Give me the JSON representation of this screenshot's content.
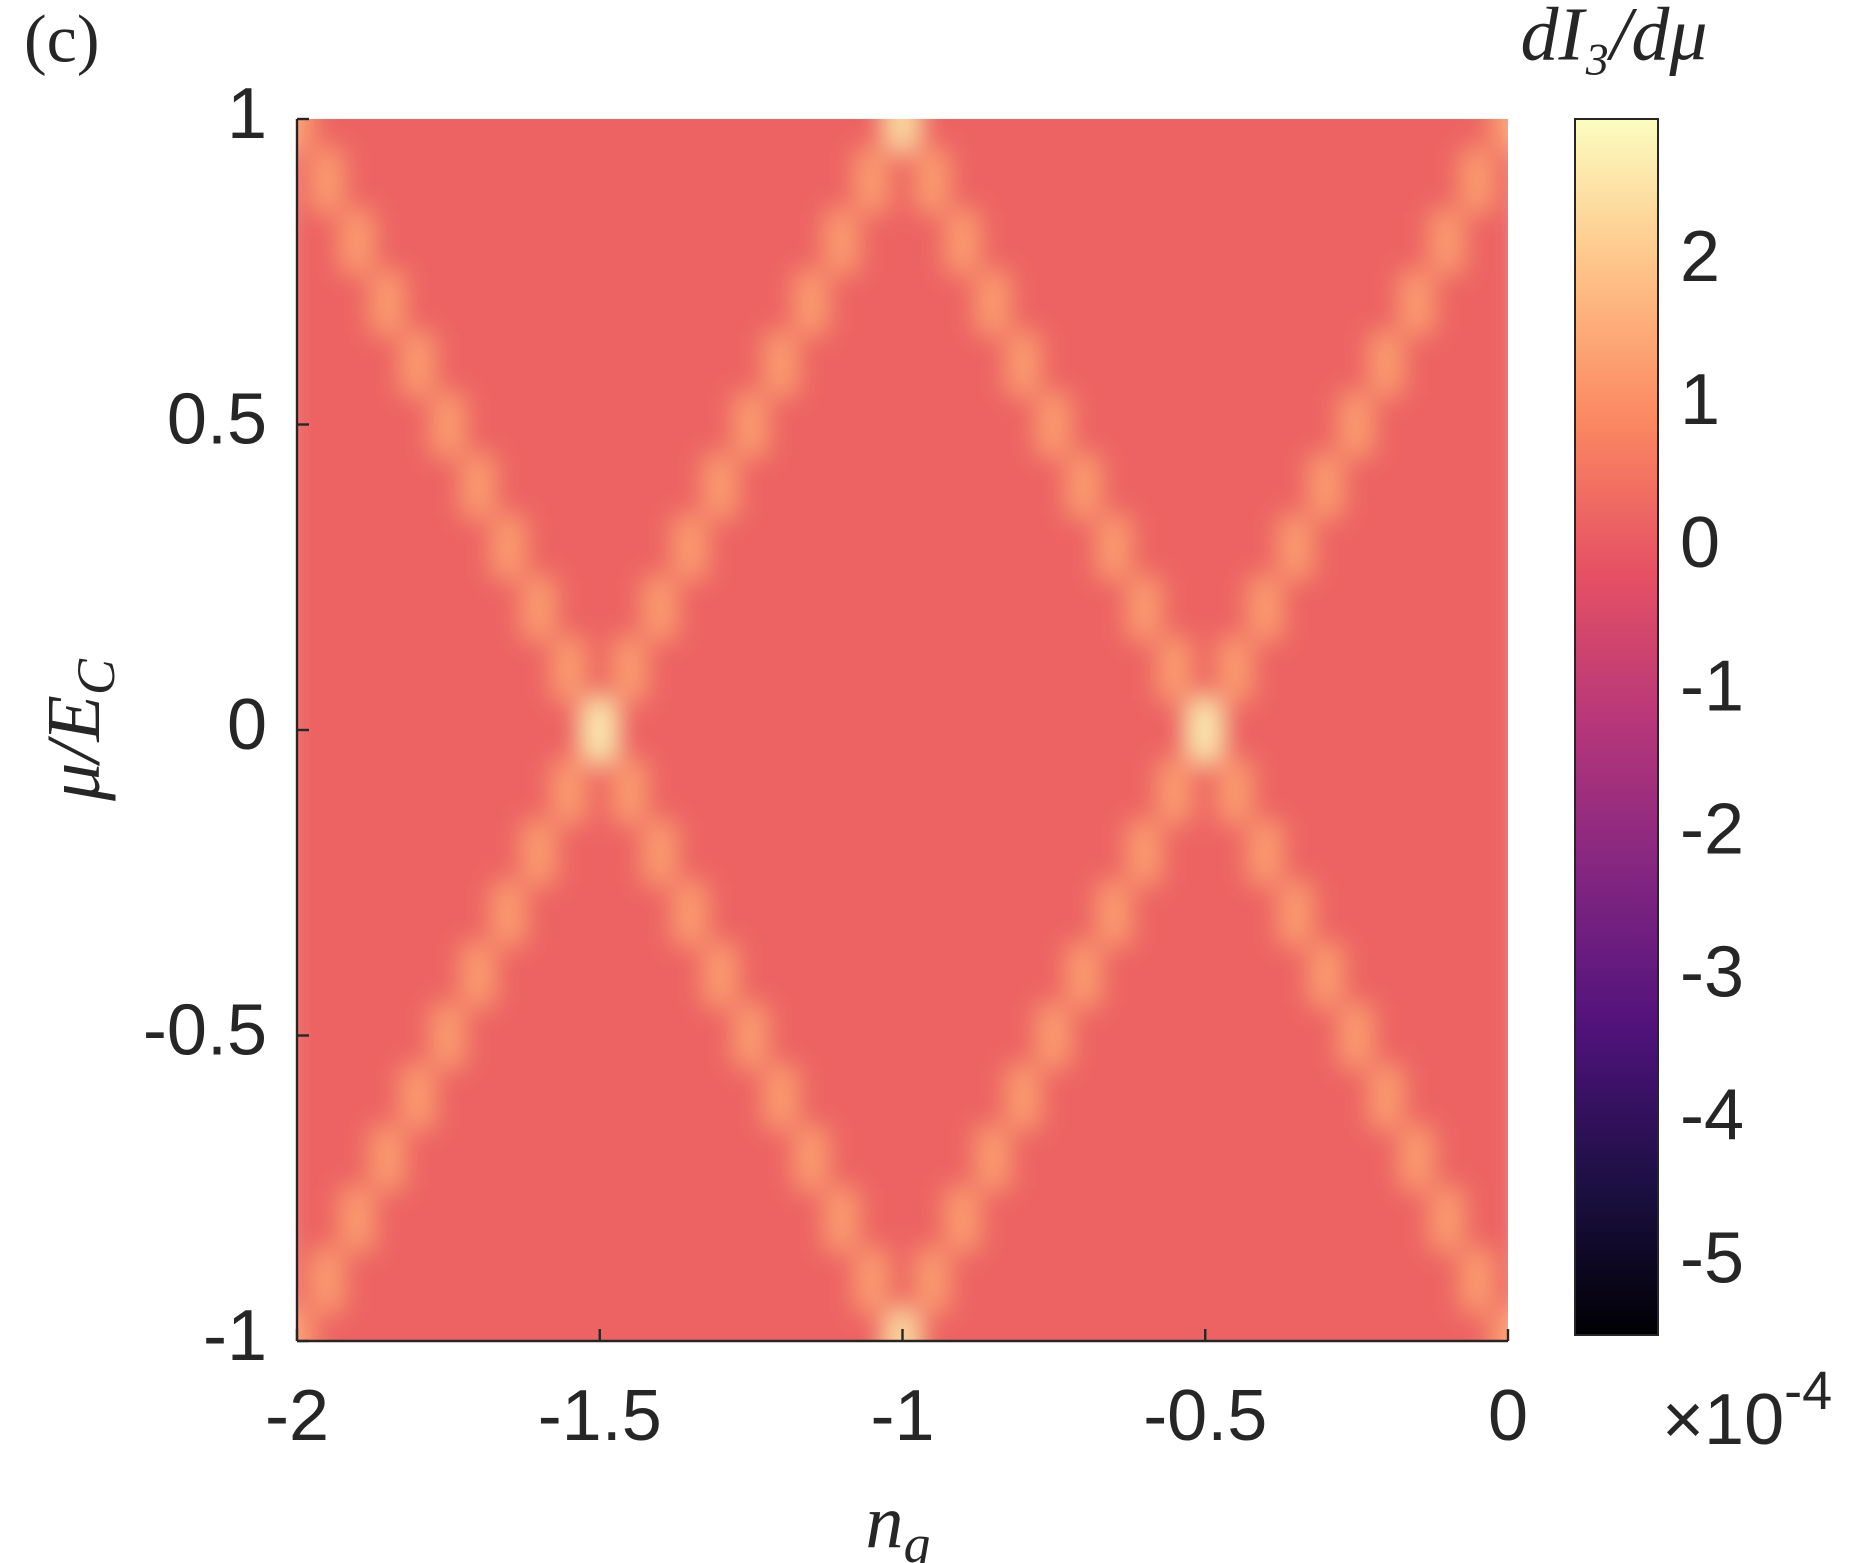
{
  "chart_data": {
    "type": "heatmap",
    "panel_label": "(c)",
    "xlabel": {
      "text": "n",
      "subscript": "g"
    },
    "ylabel": {
      "text": "μ/E",
      "subscript": "C"
    },
    "colorbar_label": "dI₃/dμ",
    "colorbar_scale": {
      "base": "×10",
      "exponent": "-4"
    },
    "x": [
      -2,
      -1.95,
      -1.9,
      -1.85,
      -1.8,
      -1.75,
      -1.7,
      -1.65,
      -1.6,
      -1.55,
      -1.5,
      -1.45,
      -1.4,
      -1.35,
      -1.3,
      -1.25,
      -1.2,
      -1.15,
      -1.1,
      -1.05,
      -1,
      -0.95,
      -0.9,
      -0.85,
      -0.8,
      -0.75,
      -0.7,
      -0.65,
      -0.6,
      -0.55,
      -0.5,
      -0.45,
      -0.4,
      -0.35,
      -0.3,
      -0.25,
      -0.2,
      -0.15,
      -0.1,
      -0.05,
      0
    ],
    "y": [
      -1,
      -0.9,
      -0.8,
      -0.7,
      -0.6,
      -0.5,
      -0.4,
      -0.3,
      -0.2,
      -0.1,
      0,
      0.1,
      0.2,
      0.3,
      0.4,
      0.5,
      0.6,
      0.7,
      0.8,
      0.9,
      1
    ],
    "z": [
      [
        1.3,
        0.2,
        0.2,
        0.2,
        0.2,
        0.2,
        0.2,
        0.2,
        0.2,
        0.2,
        0.2,
        0.2,
        0.2,
        0.2,
        0.2,
        0.2,
        0.2,
        0.2,
        0.2,
        0.2,
        2.5,
        0.2,
        0.2,
        0.2,
        0.2,
        0.2,
        0.2,
        0.2,
        0.2,
        0.2,
        0.2,
        0.2,
        0.2,
        0.2,
        0.2,
        0.2,
        0.2,
        0.2,
        0.2,
        0.2,
        1.3
      ],
      [
        0.2,
        1.3,
        0.2,
        0.2,
        0.2,
        0.2,
        0.2,
        0.2,
        0.2,
        0.2,
        0.2,
        0.2,
        0.2,
        0.2,
        0.2,
        0.2,
        0.2,
        0.2,
        0.2,
        1.3,
        0.2,
        1.3,
        0.2,
        0.2,
        0.2,
        0.2,
        0.2,
        0.2,
        0.2,
        0.2,
        0.2,
        0.2,
        0.2,
        0.2,
        0.2,
        0.2,
        0.2,
        0.2,
        0.2,
        1.3,
        0.2
      ],
      [
        0.2,
        0.2,
        1.3,
        0.2,
        0.2,
        0.2,
        0.2,
        0.2,
        0.2,
        0.2,
        0.2,
        0.2,
        0.2,
        0.2,
        0.2,
        0.2,
        0.2,
        0.2,
        1.3,
        0.2,
        0.2,
        0.2,
        1.3,
        0.2,
        0.2,
        0.2,
        0.2,
        0.2,
        0.2,
        0.2,
        0.2,
        0.2,
        0.2,
        0.2,
        0.2,
        0.2,
        0.2,
        0.2,
        1.3,
        0.2,
        0.2
      ],
      [
        0.2,
        0.2,
        0.2,
        1.3,
        0.2,
        0.2,
        0.2,
        0.2,
        0.2,
        0.2,
        0.2,
        0.2,
        0.2,
        0.2,
        0.2,
        0.2,
        0.2,
        1.3,
        0.2,
        0.2,
        0.2,
        0.2,
        0.2,
        1.3,
        0.2,
        0.2,
        0.2,
        0.2,
        0.2,
        0.2,
        0.2,
        0.2,
        0.2,
        0.2,
        0.2,
        0.2,
        0.2,
        1.3,
        0.2,
        0.2,
        0.2
      ],
      [
        0.2,
        0.2,
        0.2,
        0.2,
        1.3,
        0.2,
        0.2,
        0.2,
        0.2,
        0.2,
        0.2,
        0.2,
        0.2,
        0.2,
        0.2,
        0.2,
        1.3,
        0.2,
        0.2,
        0.2,
        0.2,
        0.2,
        0.2,
        0.2,
        1.3,
        0.2,
        0.2,
        0.2,
        0.2,
        0.2,
        0.2,
        0.2,
        0.2,
        0.2,
        0.2,
        0.2,
        1.3,
        0.2,
        0.2,
        0.2,
        0.2
      ],
      [
        0.2,
        0.2,
        0.2,
        0.2,
        0.2,
        1.3,
        0.2,
        0.2,
        0.2,
        0.2,
        0.2,
        0.2,
        0.2,
        0.2,
        0.2,
        1.3,
        0.2,
        0.2,
        0.2,
        0.2,
        0.2,
        0.2,
        0.2,
        0.2,
        0.2,
        1.3,
        0.2,
        0.2,
        0.2,
        0.2,
        0.2,
        0.2,
        0.2,
        0.2,
        0.2,
        1.3,
        0.2,
        0.2,
        0.2,
        0.2,
        0.2
      ],
      [
        0.2,
        0.2,
        0.2,
        0.2,
        0.2,
        0.2,
        1.3,
        0.2,
        0.2,
        0.2,
        0.2,
        0.2,
        0.2,
        0.2,
        1.3,
        0.2,
        0.2,
        0.2,
        0.2,
        0.2,
        0.2,
        0.2,
        0.2,
        0.2,
        0.2,
        0.2,
        1.3,
        0.2,
        0.2,
        0.2,
        0.2,
        0.2,
        0.2,
        0.2,
        1.3,
        0.2,
        0.2,
        0.2,
        0.2,
        0.2,
        0.2
      ],
      [
        0.2,
        0.2,
        0.2,
        0.2,
        0.2,
        0.2,
        0.2,
        1.3,
        0.2,
        0.2,
        0.2,
        0.2,
        0.2,
        1.3,
        0.2,
        0.2,
        0.2,
        0.2,
        0.2,
        0.2,
        0.2,
        0.2,
        0.2,
        0.2,
        0.2,
        0.2,
        0.2,
        1.3,
        0.2,
        0.2,
        0.2,
        0.2,
        0.2,
        1.3,
        0.2,
        0.2,
        0.2,
        0.2,
        0.2,
        0.2,
        0.2
      ],
      [
        0.2,
        0.2,
        0.2,
        0.2,
        0.2,
        0.2,
        0.2,
        0.2,
        1.3,
        0.2,
        0.2,
        0.2,
        1.3,
        0.2,
        0.2,
        0.2,
        0.2,
        0.2,
        0.2,
        0.2,
        0.2,
        0.2,
        0.2,
        0.2,
        0.2,
        0.2,
        0.2,
        0.2,
        1.3,
        0.2,
        0.2,
        0.2,
        1.3,
        0.2,
        0.2,
        0.2,
        0.2,
        0.2,
        0.2,
        0.2,
        0.2
      ],
      [
        0.2,
        0.2,
        0.2,
        0.2,
        0.2,
        0.2,
        0.2,
        0.2,
        0.2,
        1.3,
        0.2,
        1.3,
        0.2,
        0.2,
        0.2,
        0.2,
        0.2,
        0.2,
        0.2,
        0.2,
        0.2,
        0.2,
        0.2,
        0.2,
        0.2,
        0.2,
        0.2,
        0.2,
        0.2,
        1.3,
        0.2,
        1.3,
        0.2,
        0.2,
        0.2,
        0.2,
        0.2,
        0.2,
        0.2,
        0.2,
        0.2
      ],
      [
        0.2,
        0.2,
        0.2,
        0.2,
        0.2,
        0.2,
        0.2,
        0.2,
        0.2,
        0.2,
        2.8,
        0.2,
        0.2,
        0.2,
        0.2,
        0.2,
        0.2,
        0.2,
        0.2,
        0.2,
        0.2,
        0.2,
        0.2,
        0.2,
        0.2,
        0.2,
        0.2,
        0.2,
        0.2,
        0.2,
        2.8,
        0.2,
        0.2,
        0.2,
        0.2,
        0.2,
        0.2,
        0.2,
        0.2,
        0.2,
        0.2
      ],
      [
        0.2,
        0.2,
        0.2,
        0.2,
        0.2,
        0.2,
        0.2,
        0.2,
        0.2,
        1.3,
        0.2,
        1.3,
        0.2,
        0.2,
        0.2,
        0.2,
        0.2,
        0.2,
        0.2,
        0.2,
        0.2,
        0.2,
        0.2,
        0.2,
        0.2,
        0.2,
        0.2,
        0.2,
        0.2,
        1.3,
        0.2,
        1.3,
        0.2,
        0.2,
        0.2,
        0.2,
        0.2,
        0.2,
        0.2,
        0.2,
        0.2
      ],
      [
        0.2,
        0.2,
        0.2,
        0.2,
        0.2,
        0.2,
        0.2,
        0.2,
        1.3,
        0.2,
        0.2,
        0.2,
        1.3,
        0.2,
        0.2,
        0.2,
        0.2,
        0.2,
        0.2,
        0.2,
        0.2,
        0.2,
        0.2,
        0.2,
        0.2,
        0.2,
        0.2,
        0.2,
        1.3,
        0.2,
        0.2,
        0.2,
        1.3,
        0.2,
        0.2,
        0.2,
        0.2,
        0.2,
        0.2,
        0.2,
        0.2
      ],
      [
        0.2,
        0.2,
        0.2,
        0.2,
        0.2,
        0.2,
        0.2,
        1.3,
        0.2,
        0.2,
        0.2,
        0.2,
        0.2,
        1.3,
        0.2,
        0.2,
        0.2,
        0.2,
        0.2,
        0.2,
        0.2,
        0.2,
        0.2,
        0.2,
        0.2,
        0.2,
        0.2,
        1.3,
        0.2,
        0.2,
        0.2,
        0.2,
        0.2,
        1.3,
        0.2,
        0.2,
        0.2,
        0.2,
        0.2,
        0.2,
        0.2
      ],
      [
        0.2,
        0.2,
        0.2,
        0.2,
        0.2,
        0.2,
        1.3,
        0.2,
        0.2,
        0.2,
        0.2,
        0.2,
        0.2,
        0.2,
        1.3,
        0.2,
        0.2,
        0.2,
        0.2,
        0.2,
        0.2,
        0.2,
        0.2,
        0.2,
        0.2,
        0.2,
        1.3,
        0.2,
        0.2,
        0.2,
        0.2,
        0.2,
        0.2,
        0.2,
        1.3,
        0.2,
        0.2,
        0.2,
        0.2,
        0.2,
        0.2
      ],
      [
        0.2,
        0.2,
        0.2,
        0.2,
        0.2,
        1.3,
        0.2,
        0.2,
        0.2,
        0.2,
        0.2,
        0.2,
        0.2,
        0.2,
        0.2,
        1.3,
        0.2,
        0.2,
        0.2,
        0.2,
        0.2,
        0.2,
        0.2,
        0.2,
        0.2,
        1.3,
        0.2,
        0.2,
        0.2,
        0.2,
        0.2,
        0.2,
        0.2,
        0.2,
        0.2,
        1.3,
        0.2,
        0.2,
        0.2,
        0.2,
        0.2
      ],
      [
        0.2,
        0.2,
        0.2,
        0.2,
        1.3,
        0.2,
        0.2,
        0.2,
        0.2,
        0.2,
        0.2,
        0.2,
        0.2,
        0.2,
        0.2,
        0.2,
        1.3,
        0.2,
        0.2,
        0.2,
        0.2,
        0.2,
        0.2,
        0.2,
        1.3,
        0.2,
        0.2,
        0.2,
        0.2,
        0.2,
        0.2,
        0.2,
        0.2,
        0.2,
        0.2,
        0.2,
        1.3,
        0.2,
        0.2,
        0.2,
        0.2
      ],
      [
        0.2,
        0.2,
        0.2,
        1.3,
        0.2,
        0.2,
        0.2,
        0.2,
        0.2,
        0.2,
        0.2,
        0.2,
        0.2,
        0.2,
        0.2,
        0.2,
        0.2,
        1.3,
        0.2,
        0.2,
        0.2,
        0.2,
        0.2,
        1.3,
        0.2,
        0.2,
        0.2,
        0.2,
        0.2,
        0.2,
        0.2,
        0.2,
        0.2,
        0.2,
        0.2,
        0.2,
        0.2,
        1.3,
        0.2,
        0.2,
        0.2
      ],
      [
        0.2,
        0.2,
        1.3,
        0.2,
        0.2,
        0.2,
        0.2,
        0.2,
        0.2,
        0.2,
        0.2,
        0.2,
        0.2,
        0.2,
        0.2,
        0.2,
        0.2,
        0.2,
        1.3,
        0.2,
        0.2,
        0.2,
        1.3,
        0.2,
        0.2,
        0.2,
        0.2,
        0.2,
        0.2,
        0.2,
        0.2,
        0.2,
        0.2,
        0.2,
        0.2,
        0.2,
        0.2,
        0.2,
        1.3,
        0.2,
        0.2
      ],
      [
        0.2,
        1.3,
        0.2,
        0.2,
        0.2,
        0.2,
        0.2,
        0.2,
        0.2,
        0.2,
        0.2,
        0.2,
        0.2,
        0.2,
        0.2,
        0.2,
        0.2,
        0.2,
        0.2,
        1.3,
        0.2,
        1.3,
        0.2,
        0.2,
        0.2,
        0.2,
        0.2,
        0.2,
        0.2,
        0.2,
        0.2,
        0.2,
        0.2,
        0.2,
        0.2,
        0.2,
        0.2,
        0.2,
        0.2,
        1.3,
        0.2
      ],
      [
        1.3,
        0.2,
        0.2,
        0.2,
        0.2,
        0.2,
        0.2,
        0.2,
        0.2,
        0.2,
        0.2,
        0.2,
        0.2,
        0.2,
        0.2,
        0.2,
        0.2,
        0.2,
        0.2,
        0.2,
        2.5,
        0.2,
        0.2,
        0.2,
        0.2,
        0.2,
        0.2,
        0.2,
        0.2,
        0.2,
        0.2,
        0.2,
        0.2,
        0.2,
        0.2,
        0.2,
        0.2,
        0.2,
        0.2,
        0.2,
        1.3
      ]
    ],
    "xlim": [
      -2,
      0
    ],
    "ylim": [
      -1,
      1
    ],
    "xticks": [
      -2,
      -1.5,
      -1,
      -0.5,
      0
    ],
    "yticks": [
      -1,
      -0.5,
      0,
      0.5,
      1
    ],
    "clim": [
      -5.5,
      3
    ],
    "cticks": [
      -5,
      -4,
      -3,
      -2,
      -1,
      0,
      1,
      2
    ],
    "colormap": [
      "#000004",
      "#1c1044",
      "#4f127b",
      "#812581",
      "#b5367a",
      "#e55064",
      "#fb8761",
      "#fec287",
      "#fcfdbf"
    ]
  }
}
